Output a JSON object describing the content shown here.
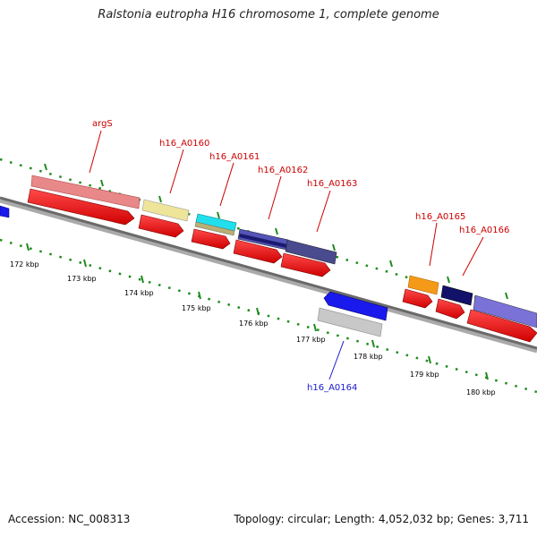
{
  "title": "Ralstonia eutropha H16 chromosome 1, complete genome",
  "footer": {
    "accession": "Accession: NC_008313",
    "summary": "Topology: circular; Length: 4,052,032 bp; Genes: 3,711"
  },
  "colors": {
    "backbone": "#6a6a6a",
    "tick_green": "#1e8c1e",
    "cds": "#f01010",
    "label_red": "#cc0000",
    "label_blue": "#1a1acc"
  },
  "axis": {
    "ticks": [
      {
        "label": "172 kbp"
      },
      {
        "label": "173 kbp"
      },
      {
        "label": "174 kbp"
      },
      {
        "label": "175 kbp"
      },
      {
        "label": "176 kbp"
      },
      {
        "label": "177 kbp"
      },
      {
        "label": "178 kbp"
      },
      {
        "label": "179 kbp"
      },
      {
        "label": "180 kbp"
      }
    ]
  },
  "features": [
    {
      "label": "argS",
      "strand": "+",
      "cog_color": "#e88888"
    },
    {
      "label": "h16_A0160",
      "strand": "+",
      "cog_color": "#eee49a"
    },
    {
      "label": "h16_A0161",
      "strand": "+",
      "cog_color": "#22dfee"
    },
    {
      "label": "h16_A0162",
      "strand": "+",
      "cog_color": "#5555b8"
    },
    {
      "label": "h16_A0163",
      "strand": "+",
      "cog_color": "#4a4a8e"
    },
    {
      "label": "h16_A0164",
      "strand": "-",
      "cog_color": "#1a1aee"
    },
    {
      "label": "h16_A0165",
      "strand": "+",
      "cog_color": "#f59a18"
    },
    {
      "label": "h16_A0166",
      "strand": "+",
      "cog_color": "#7b72d8"
    }
  ]
}
